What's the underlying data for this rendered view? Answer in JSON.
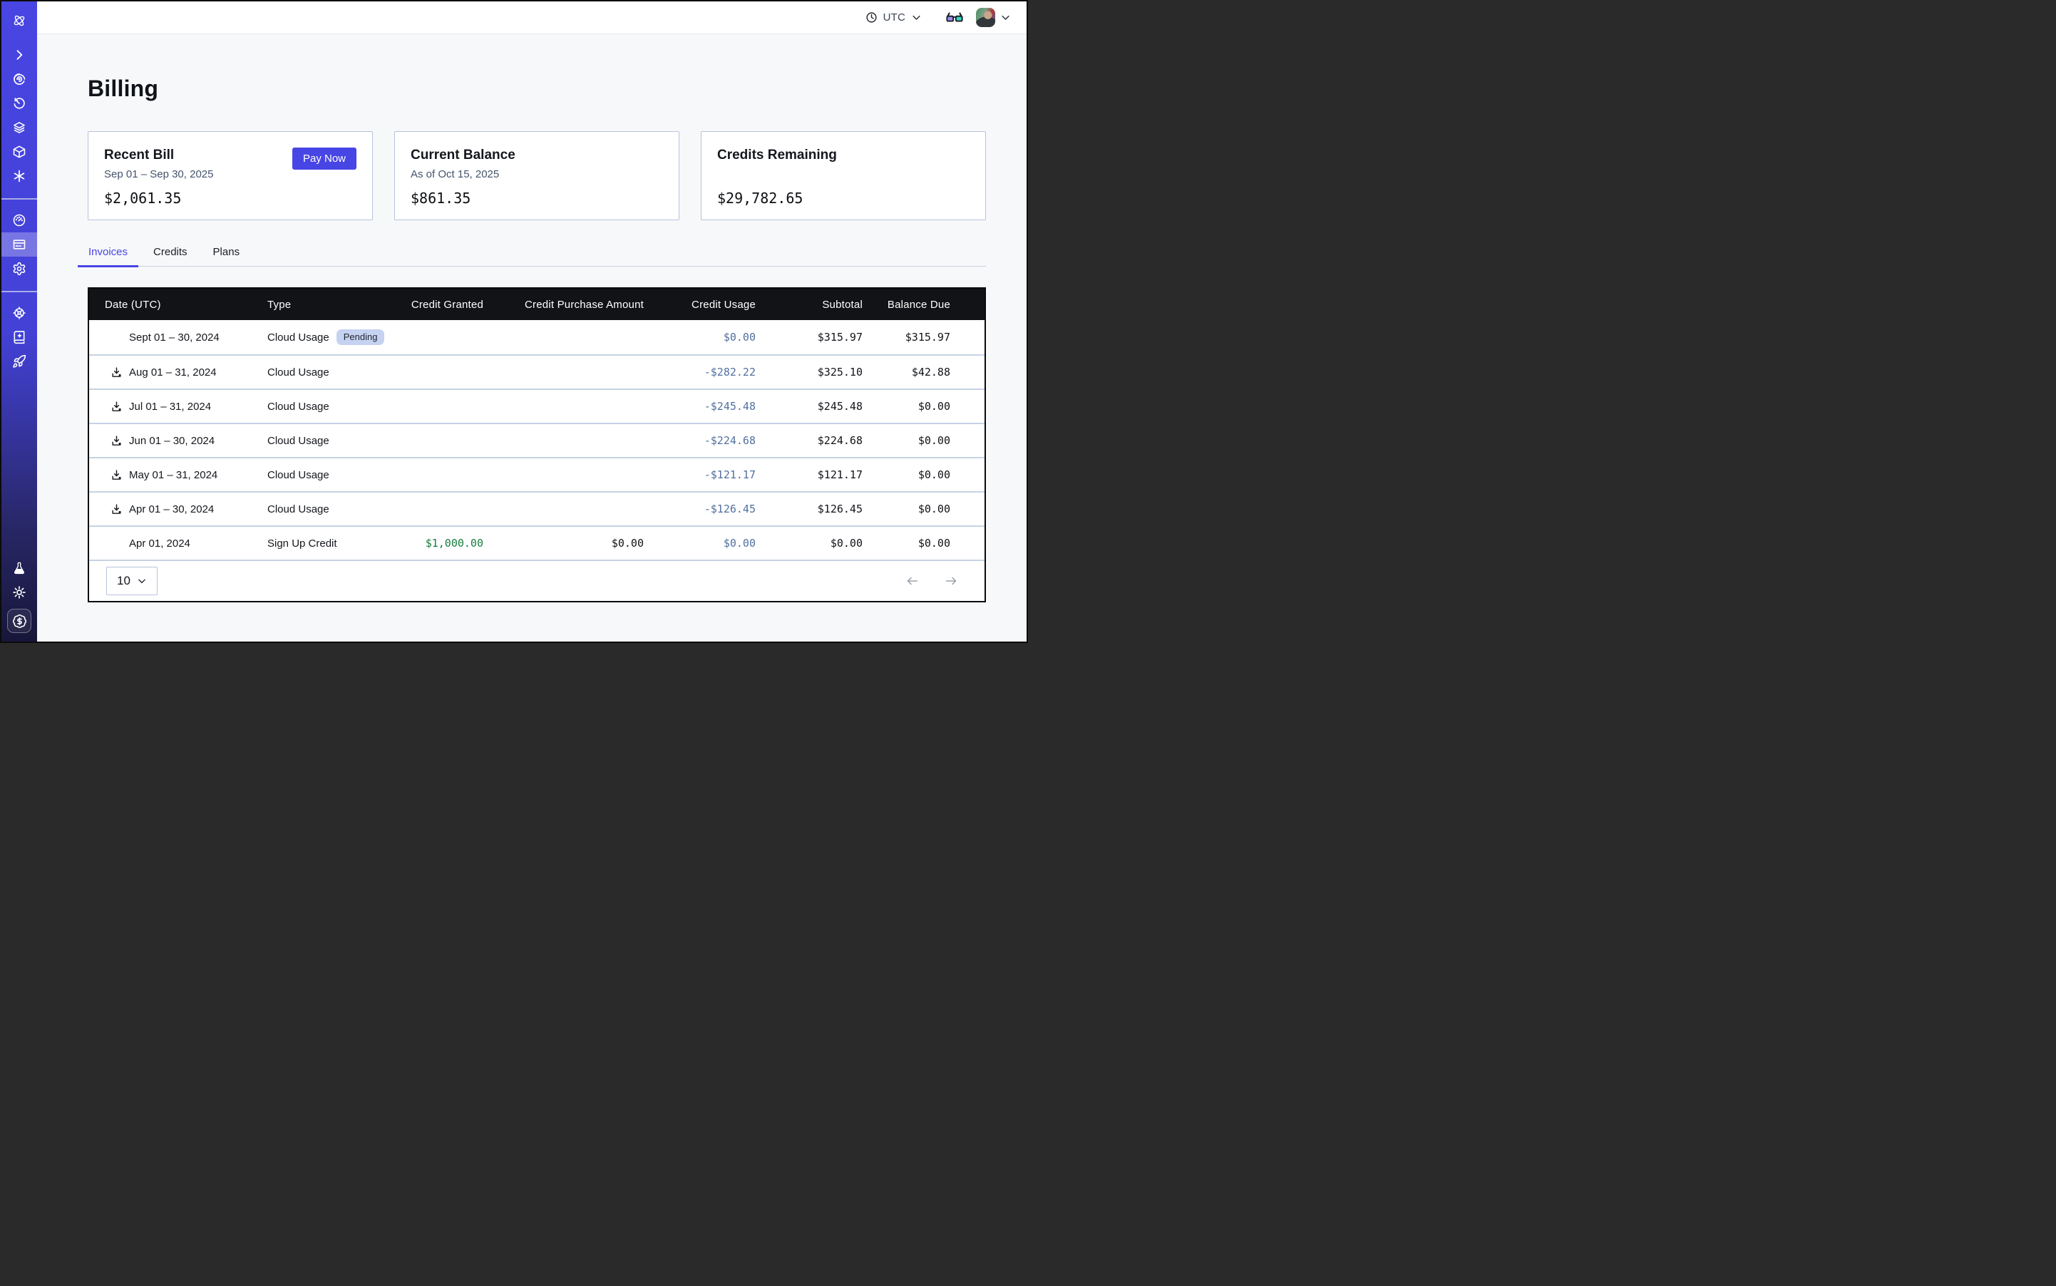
{
  "topbar": {
    "timezone_label": "UTC",
    "icons": [
      "clock-icon",
      "chevron-down-icon",
      "3d-glasses-icon",
      "avatar",
      "chevron-down-icon"
    ]
  },
  "page": {
    "title": "Billing"
  },
  "cards": [
    {
      "title": "Recent Bill",
      "subtitle": "Sep 01 – Sep 30, 2025",
      "amount": "$2,061.35",
      "action_label": "Pay Now"
    },
    {
      "title": "Current Balance",
      "subtitle": "As of Oct 15, 2025",
      "amount": "$861.35"
    },
    {
      "title": "Credits Remaining",
      "subtitle": "",
      "amount": "$29,782.65"
    }
  ],
  "tabs": [
    {
      "label": "Invoices",
      "active": true
    },
    {
      "label": "Credits",
      "active": false
    },
    {
      "label": "Plans",
      "active": false
    }
  ],
  "table": {
    "columns": [
      "Date (UTC)",
      "Type",
      "Credit Granted",
      "Credit Purchase Amount",
      "Credit Usage",
      "Subtotal",
      "Balance Due"
    ],
    "rows": [
      {
        "date": "Sept 01 – 30, 2024",
        "download": false,
        "type": "Cloud Usage",
        "badge": "Pending",
        "credit_granted": "",
        "credit_purchase": "",
        "credit_usage": "$0.00",
        "subtotal": "$315.97",
        "balance_due": "$315.97"
      },
      {
        "date": "Aug 01 – 31, 2024",
        "download": true,
        "type": "Cloud Usage",
        "badge": "",
        "credit_granted": "",
        "credit_purchase": "",
        "credit_usage": "-$282.22",
        "subtotal": "$325.10",
        "balance_due": "$42.88"
      },
      {
        "date": "Jul 01 – 31, 2024",
        "download": true,
        "type": "Cloud Usage",
        "badge": "",
        "credit_granted": "",
        "credit_purchase": "",
        "credit_usage": "-$245.48",
        "subtotal": "$245.48",
        "balance_due": "$0.00"
      },
      {
        "date": "Jun 01 – 30, 2024",
        "download": true,
        "type": "Cloud Usage",
        "badge": "",
        "credit_granted": "",
        "credit_purchase": "",
        "credit_usage": "-$224.68",
        "subtotal": "$224.68",
        "balance_due": "$0.00"
      },
      {
        "date": "May 01 – 31, 2024",
        "download": true,
        "type": "Cloud Usage",
        "badge": "",
        "credit_granted": "",
        "credit_purchase": "",
        "credit_usage": "-$121.17",
        "subtotal": "$121.17",
        "balance_due": "$0.00"
      },
      {
        "date": "Apr 01 – 30, 2024",
        "download": true,
        "type": "Cloud Usage",
        "badge": "",
        "credit_granted": "",
        "credit_purchase": "",
        "credit_usage": "-$126.45",
        "subtotal": "$126.45",
        "balance_due": "$0.00"
      },
      {
        "date": "Apr 01, 2024",
        "download": false,
        "type": "Sign Up Credit",
        "badge": "",
        "credit_granted": "$1,000.00",
        "credit_granted_green": true,
        "credit_purchase": "$0.00",
        "credit_usage": "$0.00",
        "subtotal": "$0.00",
        "balance_due": "$0.00"
      }
    ],
    "pagination": {
      "page_size": "10",
      "icons": [
        "arrow-left-icon",
        "arrow-right-icon"
      ]
    }
  },
  "sidebar": {
    "icons_top": [
      "orbit-logo-icon",
      "chevron-right-icon",
      "spiral-icon",
      "timer-icon",
      "layers-icon",
      "cube-icon",
      "asterisk-icon"
    ],
    "icons_middle": [
      "gauge-icon",
      "billing-card-icon",
      "gear-icon"
    ],
    "icons_lower": [
      "wheel-icon",
      "book-sparkle-icon",
      "rocket-icon"
    ],
    "icons_bottom": [
      "flask-icon",
      "sun-icon",
      "dollar-badge-icon"
    ],
    "active_item": "billing-card-icon"
  },
  "colors": {
    "accent": "#4845e5",
    "sidebar_top": "#4845e2",
    "sidebar_mid": "#4341d6",
    "sidebar_deep": "#282767",
    "sidebar_bottom": "#171639",
    "page_bg": "#f7f8fa",
    "card_border": "#b7c4da",
    "table_header_bg": "#121316",
    "row_divider": "#c6d2e4",
    "money_blue": "#51709f",
    "money_green": "#177e3e",
    "badge_bg": "#c5d2f1",
    "badge_text": "#23272e",
    "subtitle_text": "#44536b"
  }
}
